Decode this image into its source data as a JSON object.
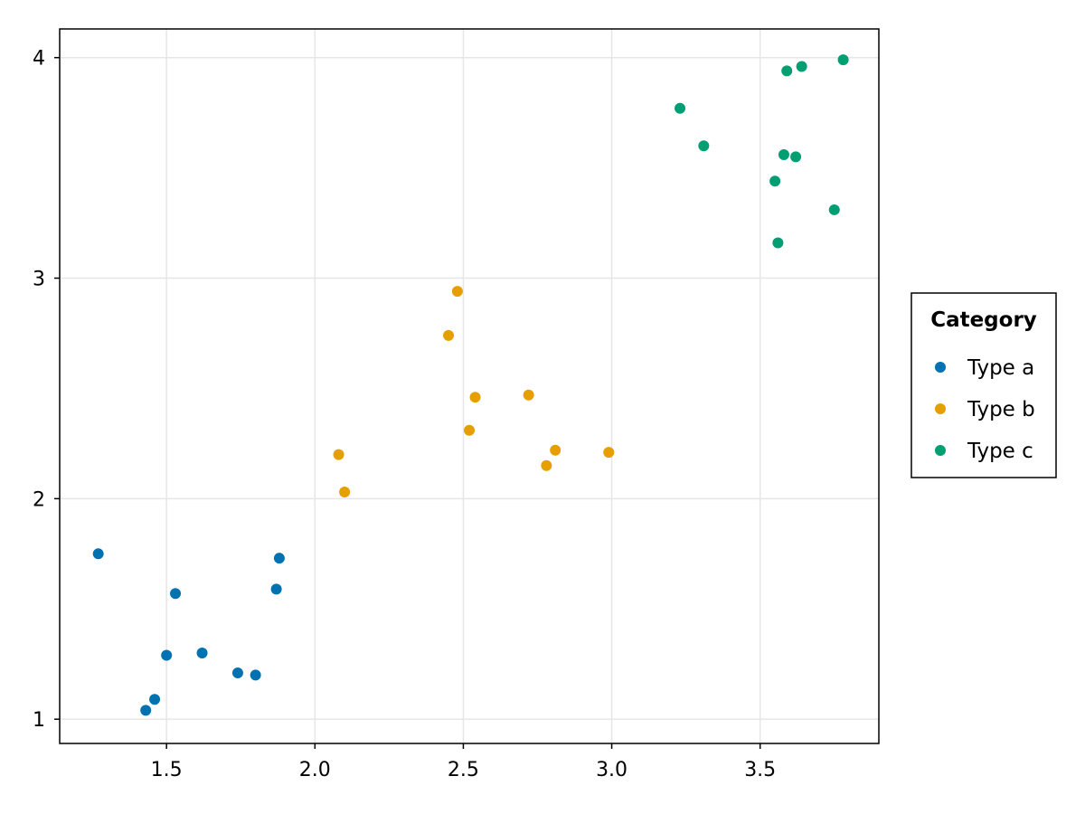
{
  "chart_data": {
    "type": "scatter",
    "title": "",
    "xlabel": "",
    "ylabel": "",
    "xlim": [
      1.14,
      3.9
    ],
    "ylim": [
      0.89,
      4.13
    ],
    "x_ticks": [
      1.5,
      2.0,
      2.5,
      3.0,
      3.5
    ],
    "x_tick_labels": [
      "1.5",
      "2.0",
      "2.5",
      "3.0",
      "3.5"
    ],
    "y_ticks": [
      1,
      2,
      3,
      4
    ],
    "y_tick_labels": [
      "1",
      "2",
      "3",
      "4"
    ],
    "grid": true,
    "legend": {
      "title": "Category",
      "placement": "right"
    },
    "series": [
      {
        "name": "Type a",
        "color": "#0072B2",
        "points": [
          {
            "x": 1.27,
            "y": 1.75
          },
          {
            "x": 1.43,
            "y": 1.04
          },
          {
            "x": 1.46,
            "y": 1.09
          },
          {
            "x": 1.5,
            "y": 1.29
          },
          {
            "x": 1.53,
            "y": 1.57
          },
          {
            "x": 1.62,
            "y": 1.3
          },
          {
            "x": 1.74,
            "y": 1.21
          },
          {
            "x": 1.8,
            "y": 1.2
          },
          {
            "x": 1.87,
            "y": 1.59
          },
          {
            "x": 1.88,
            "y": 1.73
          }
        ]
      },
      {
        "name": "Type b",
        "color": "#E69F00",
        "points": [
          {
            "x": 2.08,
            "y": 2.2
          },
          {
            "x": 2.1,
            "y": 2.03
          },
          {
            "x": 2.45,
            "y": 2.74
          },
          {
            "x": 2.48,
            "y": 2.94
          },
          {
            "x": 2.52,
            "y": 2.31
          },
          {
            "x": 2.54,
            "y": 2.46
          },
          {
            "x": 2.72,
            "y": 2.47
          },
          {
            "x": 2.78,
            "y": 2.15
          },
          {
            "x": 2.81,
            "y": 2.22
          },
          {
            "x": 2.99,
            "y": 2.21
          }
        ]
      },
      {
        "name": "Type c",
        "color": "#009E73",
        "points": [
          {
            "x": 3.23,
            "y": 3.77
          },
          {
            "x": 3.31,
            "y": 3.6
          },
          {
            "x": 3.55,
            "y": 3.44
          },
          {
            "x": 3.56,
            "y": 3.16
          },
          {
            "x": 3.58,
            "y": 3.56
          },
          {
            "x": 3.59,
            "y": 3.94
          },
          {
            "x": 3.62,
            "y": 3.55
          },
          {
            "x": 3.64,
            "y": 3.96
          },
          {
            "x": 3.75,
            "y": 3.31
          },
          {
            "x": 3.78,
            "y": 3.99
          }
        ]
      }
    ]
  }
}
